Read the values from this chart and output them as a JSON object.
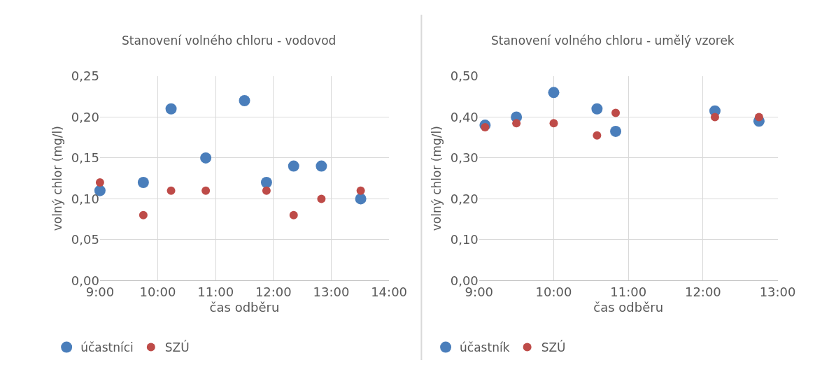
{
  "chart_data": [
    {
      "type": "scatter",
      "title": "Stanovení volného chloru - vodovod",
      "xlabel": "čas odběru",
      "ylabel": "volný chlor (mg/l)",
      "xlim": [
        9,
        14
      ],
      "xticks": [
        {
          "value": 9,
          "label": "9:00"
        },
        {
          "value": 10,
          "label": "10:00"
        },
        {
          "value": 11,
          "label": "11:00"
        },
        {
          "value": 12,
          "label": "12:00"
        },
        {
          "value": 13,
          "label": "13:00"
        },
        {
          "value": 14,
          "label": "14:00"
        }
      ],
      "ylim": [
        0,
        0.25
      ],
      "yticks": [
        {
          "value": 0,
          "label": "0,00"
        },
        {
          "value": 0.05,
          "label": "0,05"
        },
        {
          "value": 0.1,
          "label": "0,10"
        },
        {
          "value": 0.15,
          "label": "0,15"
        },
        {
          "value": 0.2,
          "label": "0,20"
        },
        {
          "value": 0.25,
          "label": "0,25"
        }
      ],
      "grid": true,
      "legend": "bottom left",
      "marker": "circle",
      "series": [
        {
          "name": "účastníci",
          "color": "#4a7ebb",
          "x": [
            9.0,
            9.75,
            10.23,
            10.83,
            11.5,
            11.88,
            12.35,
            12.83,
            13.51
          ],
          "values": [
            0.11,
            0.12,
            0.21,
            0.15,
            0.22,
            0.12,
            0.14,
            0.14,
            0.1
          ]
        },
        {
          "name": "SZÚ",
          "color": "#be4b48",
          "x": [
            9.0,
            9.75,
            10.23,
            10.83,
            11.88,
            12.35,
            12.83,
            13.51
          ],
          "values": [
            0.12,
            0.08,
            0.11,
            0.11,
            0.11,
            0.08,
            0.1,
            0.11
          ]
        }
      ]
    },
    {
      "type": "scatter",
      "title": "Stanovení volného chloru - umělý vzorek",
      "xlabel": "čas odběru",
      "ylabel": "volný chlor (mg/l)",
      "xlim": [
        9,
        13
      ],
      "xticks": [
        {
          "value": 9,
          "label": "9:00"
        },
        {
          "value": 10,
          "label": "10:00"
        },
        {
          "value": 11,
          "label": "11:00"
        },
        {
          "value": 12,
          "label": "12:00"
        },
        {
          "value": 13,
          "label": "13:00"
        }
      ],
      "ylim": [
        0,
        0.5
      ],
      "yticks": [
        {
          "value": 0,
          "label": "0,00"
        },
        {
          "value": 0.1,
          "label": "0,10"
        },
        {
          "value": 0.2,
          "label": "0,20"
        },
        {
          "value": 0.3,
          "label": "0,30"
        },
        {
          "value": 0.4,
          "label": "0,40"
        },
        {
          "value": 0.5,
          "label": "0,50"
        }
      ],
      "grid": true,
      "legend": "bottom left",
      "marker": "circle",
      "series": [
        {
          "name": "účastník",
          "color": "#4a7ebb",
          "x": [
            9.08,
            9.5,
            10.0,
            10.58,
            10.83,
            12.16,
            12.75
          ],
          "values": [
            0.38,
            0.4,
            0.46,
            0.42,
            0.365,
            0.415,
            0.39
          ]
        },
        {
          "name": "SZÚ",
          "color": "#be4b48",
          "x": [
            9.08,
            9.5,
            10.0,
            10.58,
            10.83,
            12.16,
            12.75
          ],
          "values": [
            0.375,
            0.385,
            0.385,
            0.355,
            0.41,
            0.4,
            0.4
          ]
        }
      ]
    }
  ]
}
